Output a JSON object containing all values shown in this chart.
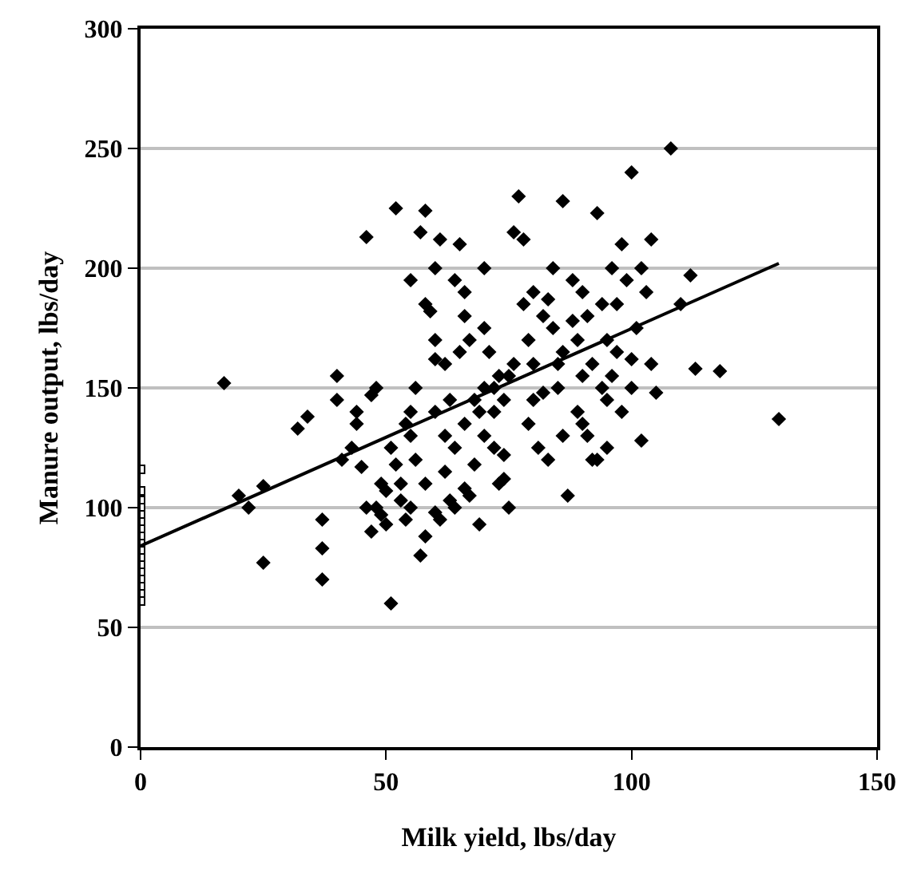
{
  "chart_data": {
    "type": "scatter",
    "xlabel": "Milk yield, lbs/day",
    "ylabel": "Manure output, lbs/day",
    "xlim": [
      0,
      150
    ],
    "xticks": [
      0,
      50,
      100,
      150
    ],
    "ylim": [
      0,
      300
    ],
    "yticks": [
      0,
      50,
      100,
      150,
      200,
      250,
      300
    ],
    "grid": "y",
    "marker": "diamond",
    "series": [
      {
        "color": "#000000",
        "x": [
          17,
          20,
          22,
          25,
          25,
          32,
          34,
          37,
          37,
          37,
          40,
          40,
          41,
          43,
          45,
          44,
          44,
          46,
          47,
          48,
          48,
          49,
          50,
          51,
          50,
          52,
          52,
          53,
          54,
          55,
          55,
          56,
          57,
          58,
          59,
          60,
          61,
          62,
          63,
          64,
          65,
          66,
          67,
          68,
          70,
          72,
          73,
          74,
          75,
          76,
          77,
          78,
          79,
          80,
          80,
          81,
          82,
          83,
          84,
          85,
          86,
          87,
          88,
          89,
          89,
          90,
          91,
          92,
          93,
          94,
          95,
          96,
          97,
          98,
          99,
          100,
          101,
          102,
          103,
          104,
          105,
          108,
          110,
          112,
          113,
          118,
          130,
          58,
          60,
          62,
          66,
          70,
          71,
          73,
          74,
          76,
          78,
          79,
          82,
          84,
          86,
          88,
          90,
          92,
          94,
          95,
          96,
          98,
          100,
          102,
          104,
          56,
          58,
          60,
          62,
          64,
          66,
          68,
          70,
          72,
          74,
          58,
          57,
          61,
          64,
          67,
          69,
          53,
          55,
          46,
          47,
          49,
          51,
          54,
          60,
          63,
          66,
          69,
          72,
          75,
          80,
          85,
          90,
          95,
          83,
          86,
          91,
          93,
          100,
          97,
          55,
          60,
          65,
          70
        ],
        "values": [
          152,
          105,
          100,
          109,
          77,
          133,
          138,
          95,
          83,
          70,
          145,
          155,
          120,
          125,
          117,
          135,
          140,
          213,
          147,
          150,
          100,
          97,
          93,
          60,
          107,
          118,
          225,
          103,
          95,
          130,
          140,
          150,
          215,
          224,
          182,
          162,
          212,
          130,
          103,
          195,
          165,
          180,
          170,
          145,
          150,
          140,
          110,
          122,
          100,
          215,
          230,
          212,
          135,
          190,
          160,
          125,
          148,
          187,
          175,
          160,
          228,
          105,
          195,
          170,
          140,
          155,
          180,
          120,
          223,
          150,
          170,
          200,
          165,
          140,
          195,
          240,
          175,
          128,
          190,
          160,
          148,
          250,
          185,
          197,
          158,
          157,
          137,
          185,
          170,
          160,
          190,
          175,
          165,
          155,
          145,
          160,
          185,
          170,
          180,
          200,
          165,
          178,
          190,
          160,
          185,
          125,
          155,
          210,
          150,
          200,
          212,
          120,
          110,
          98,
          115,
          125,
          108,
          118,
          130,
          125,
          112,
          88,
          80,
          95,
          100,
          105,
          93,
          110,
          100,
          100,
          90,
          110,
          125,
          135,
          140,
          145,
          135,
          140,
          150,
          155,
          145,
          150,
          135,
          145,
          120,
          130,
          130,
          120,
          162,
          185,
          195,
          200,
          210,
          200
        ]
      },
      {
        "color": "#ffffff",
        "marker": "square",
        "x": [
          0,
          0,
          0,
          0,
          0,
          0,
          0,
          0,
          0,
          0,
          0,
          0,
          0,
          0,
          0,
          0,
          0
        ],
        "values": [
          116,
          107,
          103,
          100,
          97,
          94,
          91,
          88,
          85,
          82,
          79,
          76,
          73,
          70,
          67,
          64,
          61
        ]
      },
      {
        "type": "line",
        "color": "#000000",
        "marker": "none",
        "line_style": "solid",
        "x": [
          0,
          130
        ],
        "values": [
          84,
          202
        ]
      }
    ]
  }
}
